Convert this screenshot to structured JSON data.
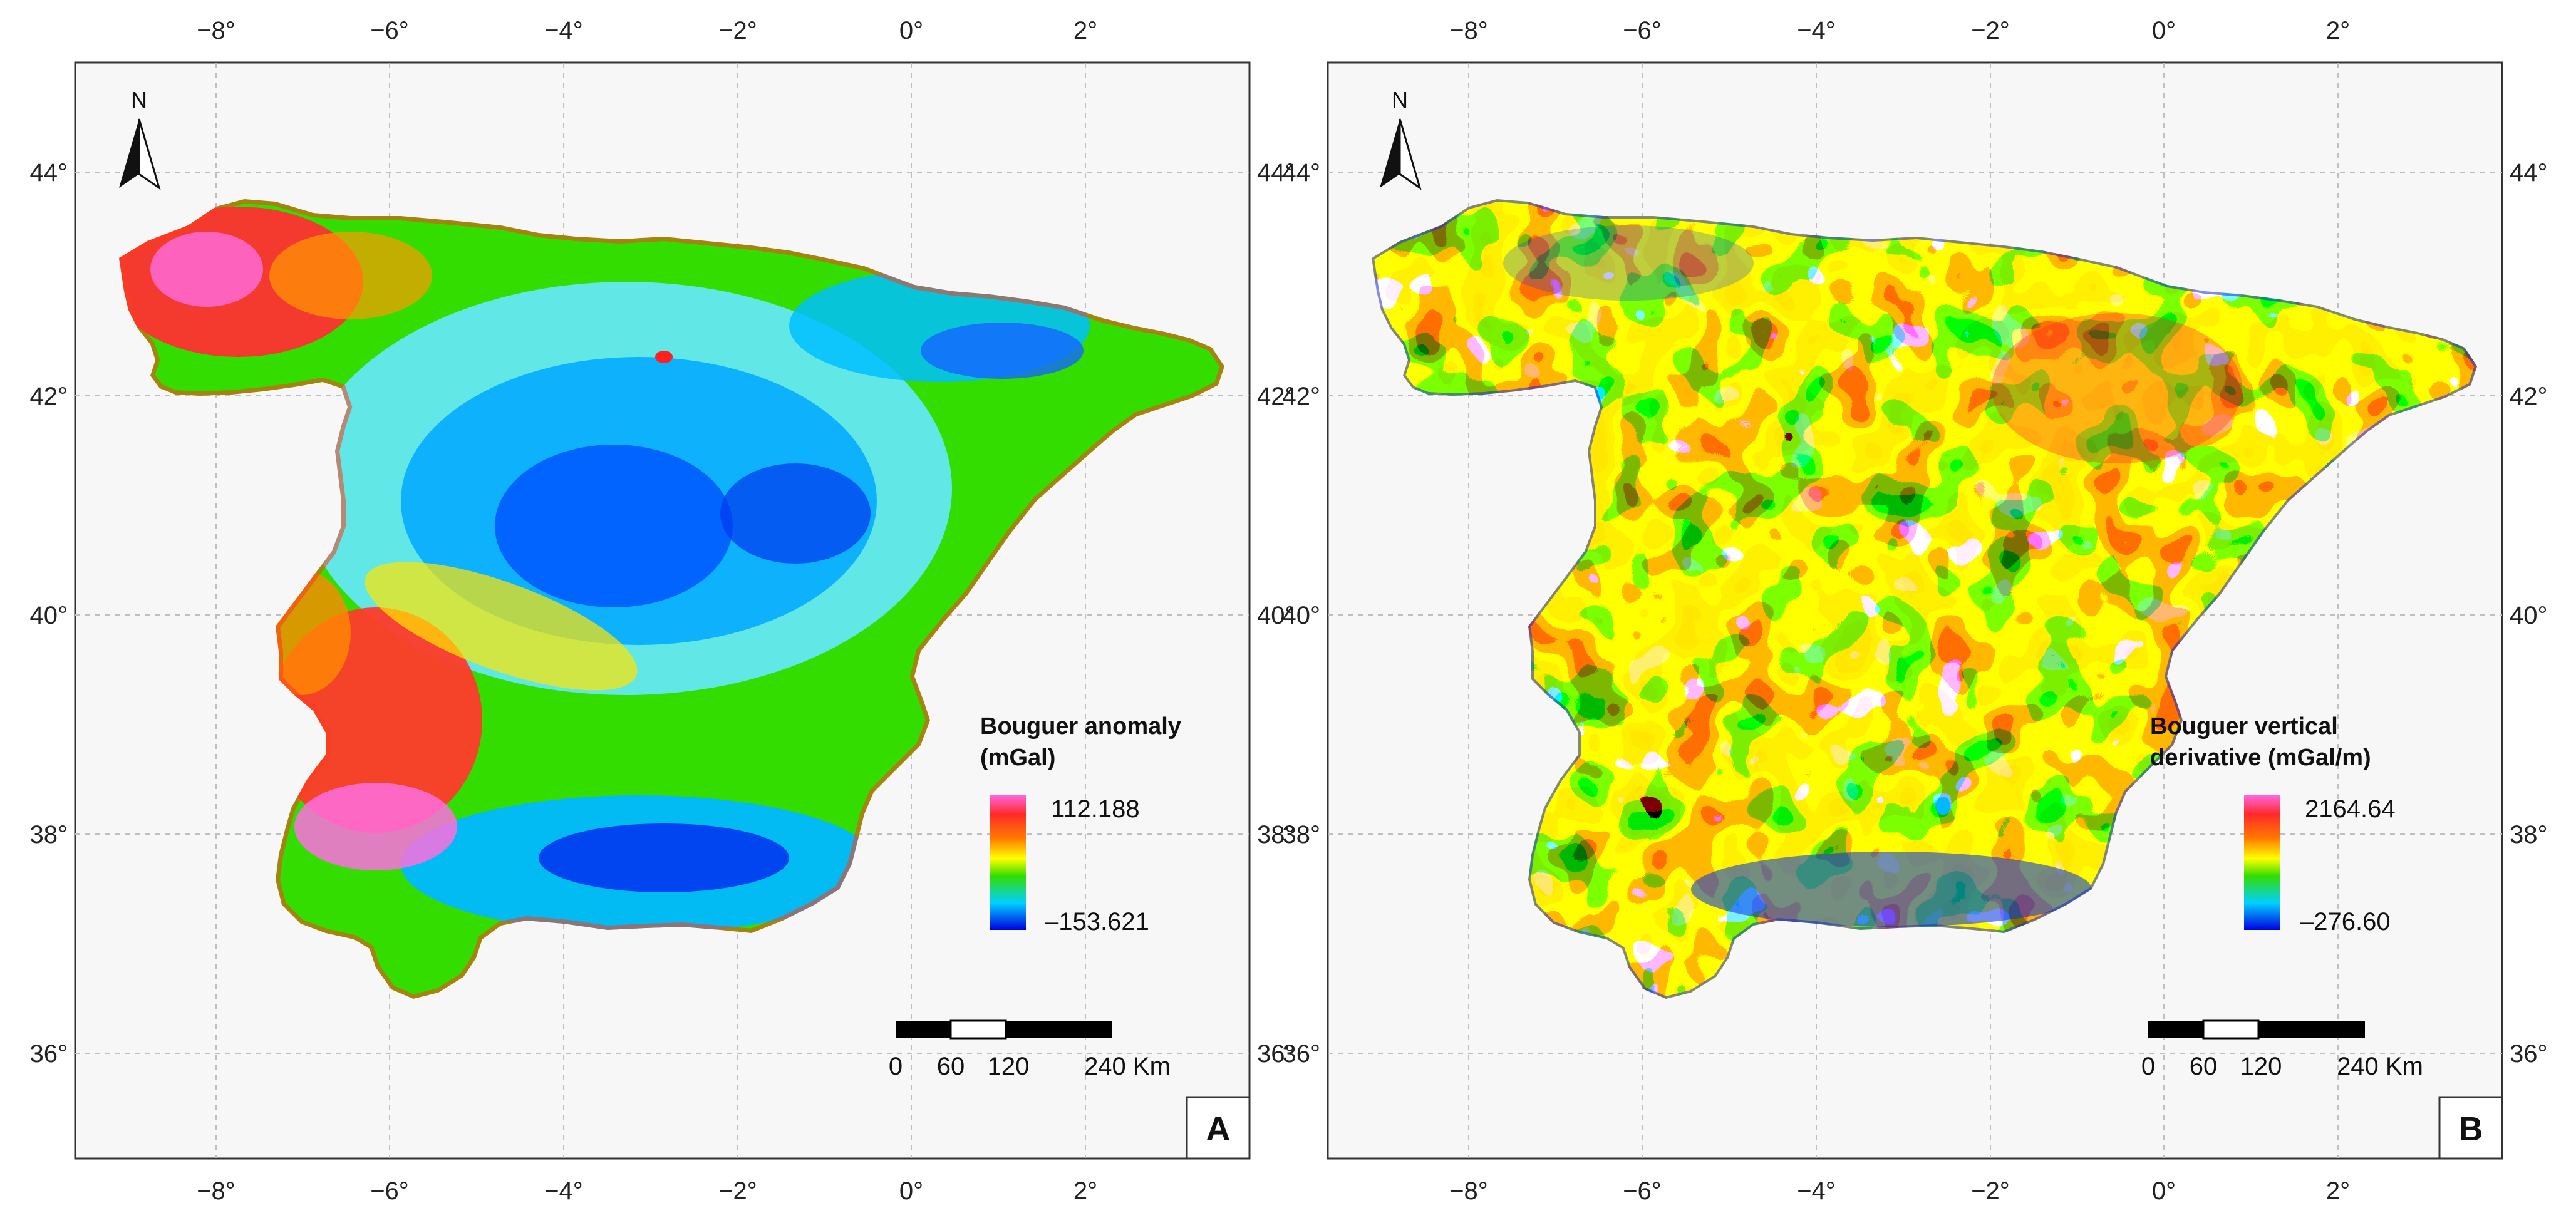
{
  "axes": {
    "lon_labels": [
      "−8°",
      "−6°",
      "−4°",
      "−2°",
      "0°",
      "2°"
    ],
    "lat_labels": [
      "44°",
      "42°",
      "40°",
      "38°",
      "36°"
    ]
  },
  "north_label": "N",
  "scale_bar": {
    "labels": [
      "0",
      "60",
      "120",
      "240 Km"
    ]
  },
  "panels": [
    {
      "letter": "A",
      "legend": {
        "title_line1": "Bouguer anomaly",
        "title_line2": "(mGal)",
        "max": "112.188",
        "min": "–153.621"
      },
      "colormap": [
        "#ff66dd",
        "#ff2a2a",
        "#ff7a00",
        "#ffff00",
        "#33dd00",
        "#00d0ff",
        "#0000e0"
      ],
      "colors": {
        "ocean": "#f7f7f7",
        "frame": "#333333"
      }
    },
    {
      "letter": "B",
      "legend": {
        "title_line1": "Bouguer vertical",
        "title_line2": "derivative (mGal/m)",
        "max": "2164.64",
        "min": "–276.60"
      },
      "colormap": [
        "#ff66dd",
        "#ff2a2a",
        "#ff7a00",
        "#ffff00",
        "#33dd00",
        "#00d0ff",
        "#0000e0"
      ],
      "colors": {
        "ocean": "#f7f7f7",
        "frame": "#333333"
      }
    }
  ]
}
